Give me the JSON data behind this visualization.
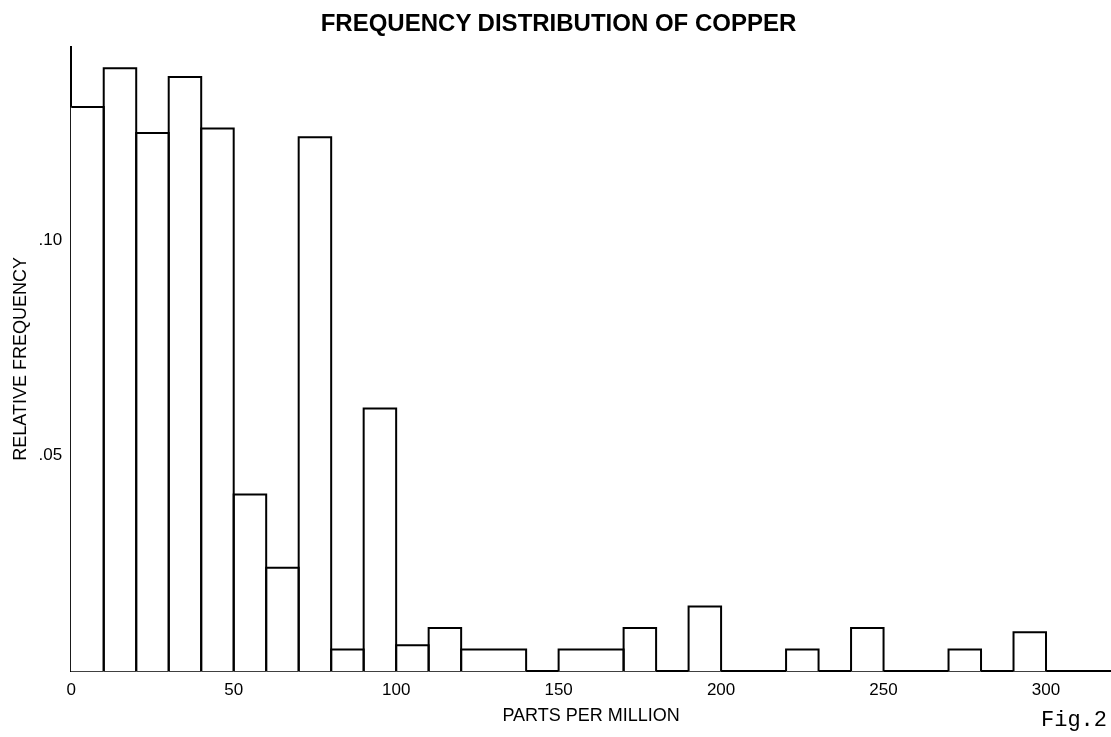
{
  "chart_data": {
    "type": "histogram",
    "title": "FREQUENCY DISTRIBUTION OF COPPER",
    "xlabel": "PARTS PER MILLION",
    "ylabel": "RELATIVE FREQUENCY",
    "bins": [
      0,
      10,
      20,
      30,
      40,
      50,
      60,
      70,
      80,
      90,
      100,
      110,
      120,
      140,
      150,
      170,
      180,
      190,
      200,
      220,
      230,
      240,
      250,
      270,
      280,
      290,
      300
    ],
    "values": [
      0.131,
      0.14,
      0.125,
      0.138,
      0.126,
      0.041,
      0.024,
      0.124,
      0.005,
      0.061,
      0.006,
      0.01,
      0.005,
      0,
      0.005,
      0.01,
      0,
      0.015,
      0,
      0.005,
      0,
      0.01,
      0,
      0.005,
      0,
      0.009
    ],
    "color": "#ffffff",
    "xlim": [
      0,
      320
    ],
    "xticks": [
      0,
      50,
      100,
      150,
      200,
      250,
      300
    ],
    "ylim": [
      0,
      0.145
    ],
    "yticks": [
      {
        "value": 0.05,
        "label": ".05"
      },
      {
        "value": 0.1,
        "label": ".10"
      }
    ],
    "grid": false,
    "annotations": [
      "Fig.2"
    ]
  }
}
